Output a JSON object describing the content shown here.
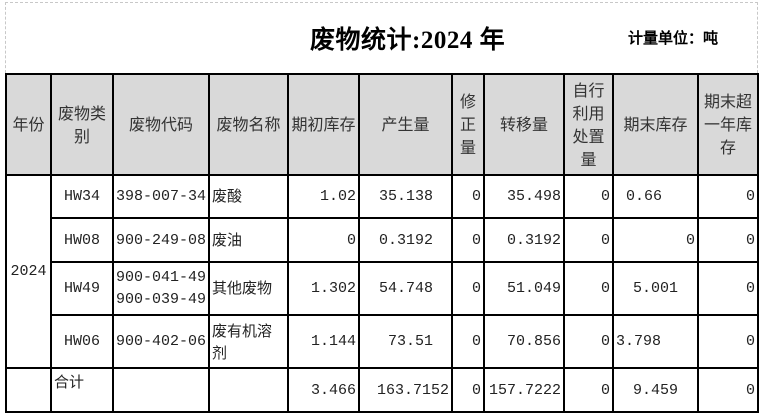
{
  "title": "废物统计:2024 年",
  "unit": "计量单位：吨",
  "headers": [
    "年份",
    "废物类别",
    "废物代码",
    "废物名称",
    "期初库存",
    "产生量",
    "修正量",
    "转移量",
    "自行利用处置量",
    "期末库存",
    "期末超一年库存"
  ],
  "year": "2024",
  "rows": [
    {
      "category": "HW34",
      "codes": [
        "398-007-34"
      ],
      "name": "废酸",
      "opening": "1.02",
      "generated": "35.138",
      "correction": "0",
      "transferred": "35.498",
      "self_disposal": "0",
      "closing": "0.66",
      "over_one_year": "0"
    },
    {
      "category": "HW08",
      "codes": [
        "900-249-08"
      ],
      "name": "废油",
      "opening": "0",
      "generated": "0.3192",
      "correction": "0",
      "transferred": "0.3192",
      "self_disposal": "0",
      "closing": "0",
      "over_one_year": "0"
    },
    {
      "category": "HW49",
      "codes": [
        "900-041-49",
        "900-039-49"
      ],
      "name": "其他废物",
      "opening": "1.302",
      "generated": "54.748",
      "correction": "0",
      "transferred": "51.049",
      "self_disposal": "0",
      "closing": "5.001",
      "over_one_year": "0"
    },
    {
      "category": "HW06",
      "codes": [
        "900-402-06"
      ],
      "name": "废有机溶剂",
      "opening": "1.144",
      "generated": "73.51",
      "correction": "0",
      "transferred": "70.856",
      "self_disposal": "0",
      "closing": "3.798",
      "over_one_year": "0"
    }
  ],
  "total": {
    "label": "合计",
    "opening": "3.466",
    "generated": "163.7152",
    "correction": "0",
    "transferred": "157.7222",
    "self_disposal": "0",
    "closing": "9.459",
    "over_one_year": "0"
  }
}
